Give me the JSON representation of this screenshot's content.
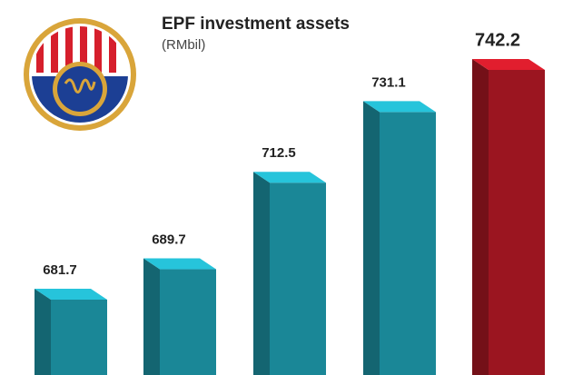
{
  "chart_data": {
    "type": "bar3d",
    "title": "EPF investment assets",
    "subtitle": "(RMbil)",
    "values": [
      681.7,
      689.7,
      712.5,
      731.1,
      742.2
    ],
    "colors": [
      "#1a8797",
      "#1a8797",
      "#1a8797",
      "#1a8797",
      "#9b1520"
    ]
  }
}
